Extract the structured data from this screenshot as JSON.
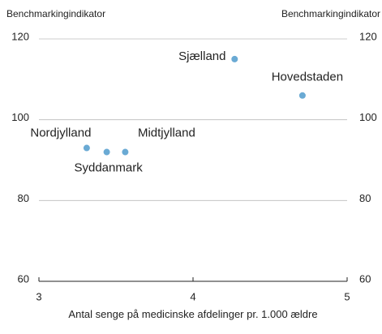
{
  "chart_data": {
    "type": "scatter",
    "y_label": "Benchmarkingindikator",
    "y2_label": "Benchmarkingindikator",
    "x_label": "Antal senge på medicinske afdelinger pr. 1.000 ældre",
    "xlim": [
      3,
      5
    ],
    "xticks": [
      3,
      4,
      5
    ],
    "ylim": [
      60,
      120
    ],
    "yticks": [
      60,
      80,
      100,
      120
    ],
    "y2lim": [
      60,
      120
    ],
    "y2ticks": [
      60,
      80,
      100,
      120
    ],
    "grid": true,
    "series": [
      {
        "color": "#6aaad4",
        "labels": [
          "Nordjylland",
          "Syddanmark",
          "Midtjylland",
          "Sjælland",
          "Hovedstaden"
        ],
        "x": [
          3.31,
          3.44,
          3.56,
          4.27,
          4.71
        ],
        "values": [
          93,
          92,
          92,
          115,
          106
        ]
      }
    ]
  }
}
